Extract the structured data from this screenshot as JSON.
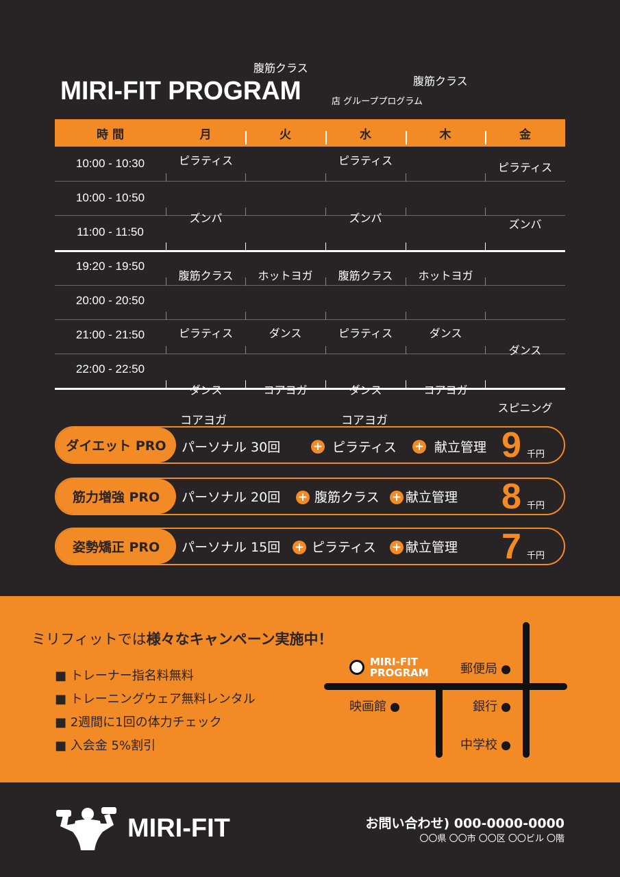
{
  "header": {
    "title": "MIRI-FIT PROGRAM",
    "subtitle": "店 グループプログラム",
    "stray_labels": [
      "腹筋クラス",
      "腹筋クラス"
    ]
  },
  "schedule": {
    "columns": [
      "時 間",
      "月",
      "火",
      "水",
      "木",
      "金"
    ],
    "times": [
      "10:00 - 10:30",
      "10:00 - 10:50",
      "11:00 - 11:50",
      "19:20 - 19:50",
      "20:00 - 20:50",
      "21:00 - 21:50",
      "22:00 - 22:50"
    ],
    "classes": {
      "mon": [
        "ピラティス",
        "ズンバ",
        "腹筋クラス",
        "ピラティス",
        "ダンス"
      ],
      "tue": [
        "ホットヨガ",
        "ダンス",
        "コアヨガ"
      ],
      "wed": [
        "ピラティス",
        "ズンバ",
        "腹筋クラス",
        "ピラティス",
        "ダンス"
      ],
      "thu": [
        "ホットヨガ",
        "ダンス",
        "コアヨガ"
      ],
      "fri": [
        "ピラティス",
        "ズンバ",
        "ダンス",
        "スピニング"
      ]
    }
  },
  "plans": [
    {
      "name": "ダイエット PRO",
      "items": [
        "パーソナル 30回",
        "ピラティス",
        "献立管理"
      ],
      "overlay": [
        "コアヨガ",
        "コアヨガ"
      ],
      "price": "9",
      "unit": "千円"
    },
    {
      "name": "筋力増強 PRO",
      "items": [
        "パーソナル 20回",
        "腹筋クラス",
        "献立管理"
      ],
      "price": "8",
      "unit": "千円"
    },
    {
      "name": "姿勢矯正 PRO",
      "items": [
        "パーソナル 15回",
        "ピラティス",
        "献立管理"
      ],
      "price": "7",
      "unit": "千円"
    }
  ],
  "campaign": {
    "lead": "ミリフィットでは",
    "headline": "様々なキャンペーン実施中！",
    "items": [
      "■ トレーナー指名料無料",
      "■ トレーニングウェア無料レンタル",
      "■ 2週間に1回の体力チェック",
      "■ 入会金 5%割引"
    ]
  },
  "map": {
    "here_line1": "MIRI-FIT",
    "here_line2": "PROGRAM",
    "places": [
      "郵便局",
      "映画館",
      "銀行",
      "中学校"
    ]
  },
  "footer": {
    "logo": "MIRI-FIT",
    "contact": "お問い合わせ) 000-0000-0000",
    "address": "〇〇県 〇〇市 〇〇区 〇〇ビル 〇階"
  },
  "colors": {
    "accent": "#f28a26",
    "background": "#282425"
  }
}
